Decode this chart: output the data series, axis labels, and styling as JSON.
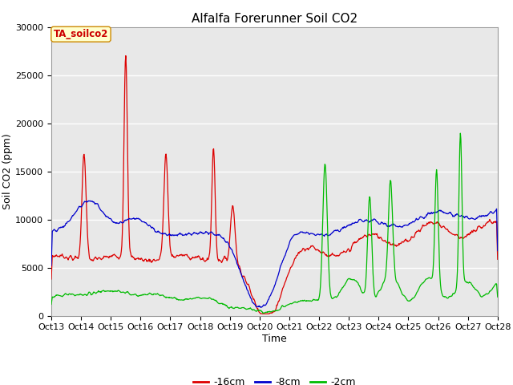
{
  "title": "Alfalfa Forerunner Soil CO2",
  "ylabel": "Soil CO2 (ppm)",
  "xlabel": "Time",
  "annotation": "TA_soilco2",
  "legend_labels": [
    "-16cm",
    "-8cm",
    "-2cm"
  ],
  "legend_colors": [
    "#dd0000",
    "#0000cc",
    "#00bb00"
  ],
  "x_tick_labels": [
    "Oct 13",
    "Oct 14",
    "Oct 15",
    "Oct 16",
    "Oct 17",
    "Oct 18",
    "Oct 19",
    "Oct 20",
    "Oct 21",
    "Oct 22",
    "Oct 23",
    "Oct 24",
    "Oct 25",
    "Oct 26",
    "Oct 27",
    "Oct 28"
  ],
  "ylim": [
    0,
    30000
  ],
  "yticks": [
    0,
    5000,
    10000,
    15000,
    20000,
    25000,
    30000
  ],
  "bg_color": "#e8e8e8",
  "fig_bg_color": "#ffffff",
  "grid_color": "#ffffff",
  "title_fontsize": 11,
  "axis_label_fontsize": 9,
  "tick_fontsize": 8
}
